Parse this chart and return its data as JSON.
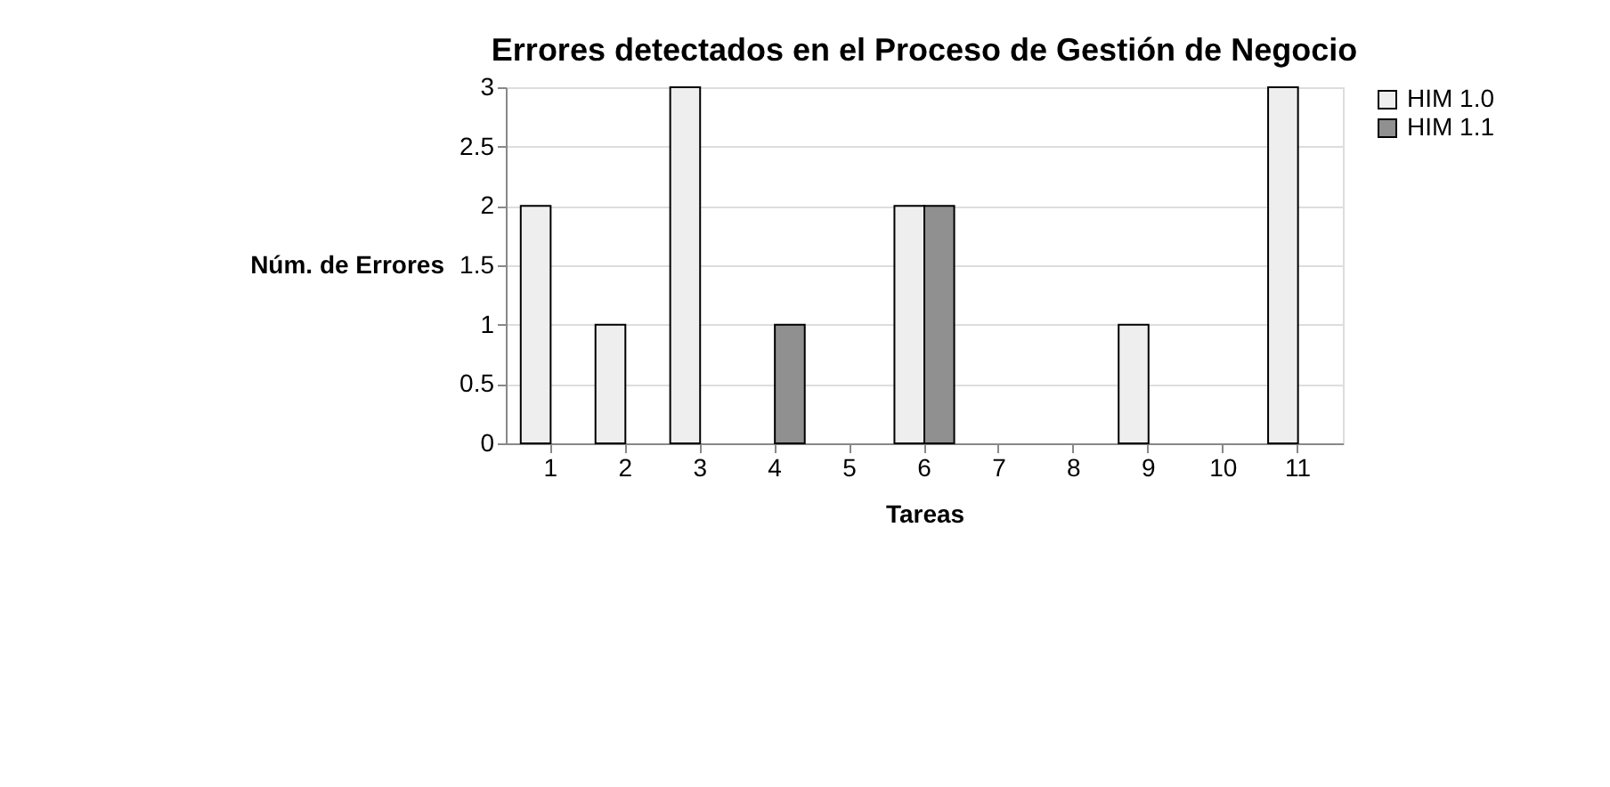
{
  "chart_data": {
    "type": "bar",
    "title": "Errores detectados en el Proceso de Gestión de Negocio",
    "xlabel": "Tareas",
    "ylabel": "Núm. de Errores",
    "categories": [
      "1",
      "2",
      "3",
      "4",
      "5",
      "6",
      "7",
      "8",
      "9",
      "10",
      "11"
    ],
    "series": [
      {
        "name": "HIM 1.0",
        "color": "#eeeeee",
        "values": [
          2,
          1,
          3,
          0,
          0,
          2,
          0,
          0,
          1,
          0,
          3
        ]
      },
      {
        "name": "HIM 1.1",
        "color": "#909090",
        "values": [
          0,
          0,
          0,
          1,
          0,
          2,
          0,
          0,
          0,
          0,
          0
        ]
      }
    ],
    "ylim": [
      0,
      3
    ],
    "yticks": [
      0,
      0.5,
      1,
      1.5,
      2,
      2.5,
      3
    ],
    "grid": "y",
    "legend": "right"
  }
}
